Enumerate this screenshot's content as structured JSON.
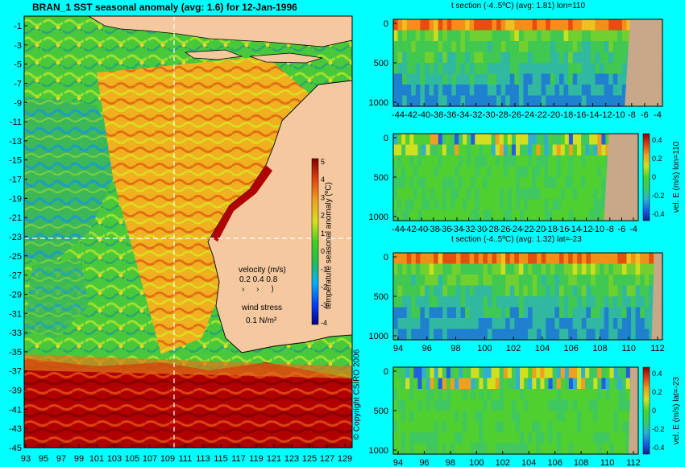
{
  "main_map": {
    "title": "BRAN_1  SST seasonal anomaly  (avg: 1.6) for 12-Jan-1996",
    "lat_ticks": [
      "-1",
      "-3",
      "-5",
      "-7",
      "-9",
      "-11",
      "-13",
      "-15",
      "-17",
      "-19",
      "-21",
      "-23",
      "-25",
      "-27",
      "-29",
      "-31",
      "-33",
      "-35",
      "-37",
      "-39",
      "-41",
      "-43",
      "-45"
    ],
    "lon_ticks": [
      "93",
      "95",
      "97",
      "99",
      "101",
      "103",
      "105",
      "107",
      "109",
      "111",
      "113",
      "115",
      "117",
      "119",
      "121",
      "123",
      "125",
      "127",
      "129"
    ],
    "colorbar": {
      "label": "temperature seasonal anomaly (ºC)",
      "ticks": [
        "5",
        "4",
        "3",
        "2",
        "1",
        "0",
        "-1",
        "-2",
        "-3",
        "-4"
      ]
    },
    "velocity_label": "velocity (m/s)",
    "velocity_scale": "0.2 0.4 0.8",
    "wind_label": "wind stress",
    "wind_scale": "0.1 N/m²",
    "copyright": "© Copyright CSIRO 2006",
    "colors": {
      "ocean_warm": "#f2a020",
      "ocean_hot": "#b00000",
      "ocean_mid": "#60d020",
      "ocean_cool": "#20a8c0",
      "land": "#f5c8a0",
      "background": "#00ffff"
    }
  },
  "panels": [
    {
      "title": "t section (-4..5ºC)  (avg: 1.81)  lon=110",
      "y_ticks": [
        "0",
        "500",
        "1000"
      ],
      "x_ticks": [
        "-44",
        "-42",
        "-40",
        "-38",
        "-36",
        "-34",
        "-32",
        "-30",
        "-28",
        "-26",
        "-24",
        "-22",
        "-20",
        "-18",
        "-16",
        "-14",
        "-12",
        "-10",
        "-8",
        "-6",
        "-4"
      ],
      "colorbar": null
    },
    {
      "title": "",
      "y_ticks": [
        "0",
        "500",
        "1000"
      ],
      "x_ticks": [
        "-44",
        "-42",
        "-40",
        "-38",
        "-36",
        "-34",
        "-32",
        "-30",
        "-28",
        "-26",
        "-24",
        "-22",
        "-20",
        "-18",
        "-16",
        "-14",
        "-12",
        "-10",
        "-8",
        "-6",
        "-4"
      ],
      "colorbar": {
        "label": "vel. E (m/s) lon=110",
        "ticks": [
          "0.4",
          "0.2",
          "0",
          "-0.2",
          "-0.4"
        ]
      }
    },
    {
      "title": "t section (-4..5ºC)  (avg: 1.32)  lat=-23",
      "y_ticks": [
        "0",
        "500",
        "1000"
      ],
      "x_ticks": [
        "94",
        "96",
        "98",
        "100",
        "102",
        "104",
        "106",
        "108",
        "110",
        "112"
      ],
      "colorbar": null
    },
    {
      "title": "",
      "y_ticks": [
        "0",
        "500",
        "1000"
      ],
      "x_ticks": [
        "94",
        "96",
        "98",
        "100",
        "102",
        "104",
        "106",
        "108",
        "110",
        "112"
      ],
      "colorbar": {
        "label": "vel. E (m/s) lat=-23",
        "ticks": [
          "0.4",
          "0.2",
          "0",
          "-0.2",
          "-0.4"
        ]
      }
    }
  ]
}
